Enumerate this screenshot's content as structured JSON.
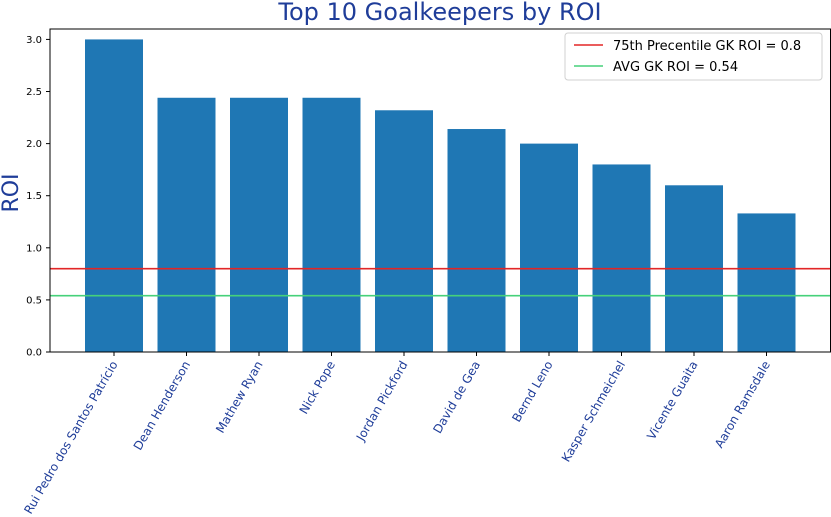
{
  "chart_data": {
    "type": "bar",
    "title": "Top 10 Goalkeepers by ROI",
    "xlabel": "",
    "ylabel": "ROI",
    "ylim": [
      0,
      3.1
    ],
    "yticks": [
      "0.0",
      "0.5",
      "1.0",
      "1.5",
      "2.0",
      "2.5",
      "3.0"
    ],
    "categories": [
      "Rui Pedro dos Santos Patrício",
      "Dean Henderson",
      "Mathew Ryan",
      "Nick Pope",
      "Jordan Pickford",
      "David de Gea",
      "Bernd Leno",
      "Kasper Schmeichel",
      "Vicente Guaita",
      "Aaron Ramsdale"
    ],
    "values": [
      3.0,
      2.44,
      2.44,
      2.44,
      2.32,
      2.14,
      2.0,
      1.8,
      1.6,
      1.33
    ],
    "bar_color": "#1f77b4",
    "reference_lines": [
      {
        "label": "75th Precentile GK ROI = 0.8",
        "value": 0.8,
        "color": "#e32626"
      },
      {
        "label": "AVG GK ROI = 0.54",
        "value": 0.54,
        "color": "#46d17a"
      }
    ],
    "legend_position": "top-right",
    "grid": false
  }
}
